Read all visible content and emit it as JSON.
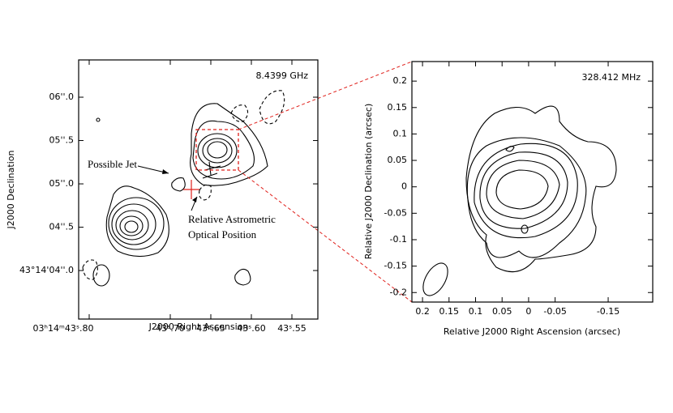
{
  "chart_data": [
    {
      "type": "contour",
      "title": "8.4399 GHz",
      "xlabel": "J2000 Right Ascension",
      "ylabel": "J2000 Declination",
      "xlim": [
        43.813,
        43.518
      ],
      "ylim": [
        3.44,
        6.43
      ],
      "xticks": [
        {
          "value": 43.8,
          "label": "03ʰ14ᵐ43ˢ.80"
        },
        {
          "value": 43.7,
          "label": "43ˢ.70"
        },
        {
          "value": 43.65,
          "label": "43ˢ.65"
        },
        {
          "value": 43.6,
          "label": "43ˢ.60"
        },
        {
          "value": 43.55,
          "label": "43ˢ.55"
        }
      ],
      "yticks": [
        {
          "value": 6.0,
          "label": "06''.0"
        },
        {
          "value": 5.5,
          "label": "05''.5"
        },
        {
          "value": 5.0,
          "label": "05''.0"
        },
        {
          "value": 4.5,
          "label": "04''.5"
        },
        {
          "value": 4.0,
          "label": "43°14'04''.0"
        }
      ],
      "annotations": [
        "Possible Jet",
        "Relative Astrometric",
        "Optical Position"
      ]
    },
    {
      "type": "contour",
      "title": "328.412 MHz",
      "xlabel": "Relative J2000 Right Ascension (arcsec)",
      "ylabel": "Relative J2000 Declination (arcsec)",
      "xlim": [
        0.22,
        -0.234
      ],
      "ylim": [
        -0.218,
        0.237
      ],
      "xticks": [
        0.2,
        0.15,
        0.1,
        0.05,
        0,
        -0.05,
        -0.15
      ],
      "yticks": [
        0.2,
        0.15,
        0.1,
        0.05,
        0,
        -0.05,
        -0.1,
        -0.15,
        -0.2
      ]
    }
  ]
}
